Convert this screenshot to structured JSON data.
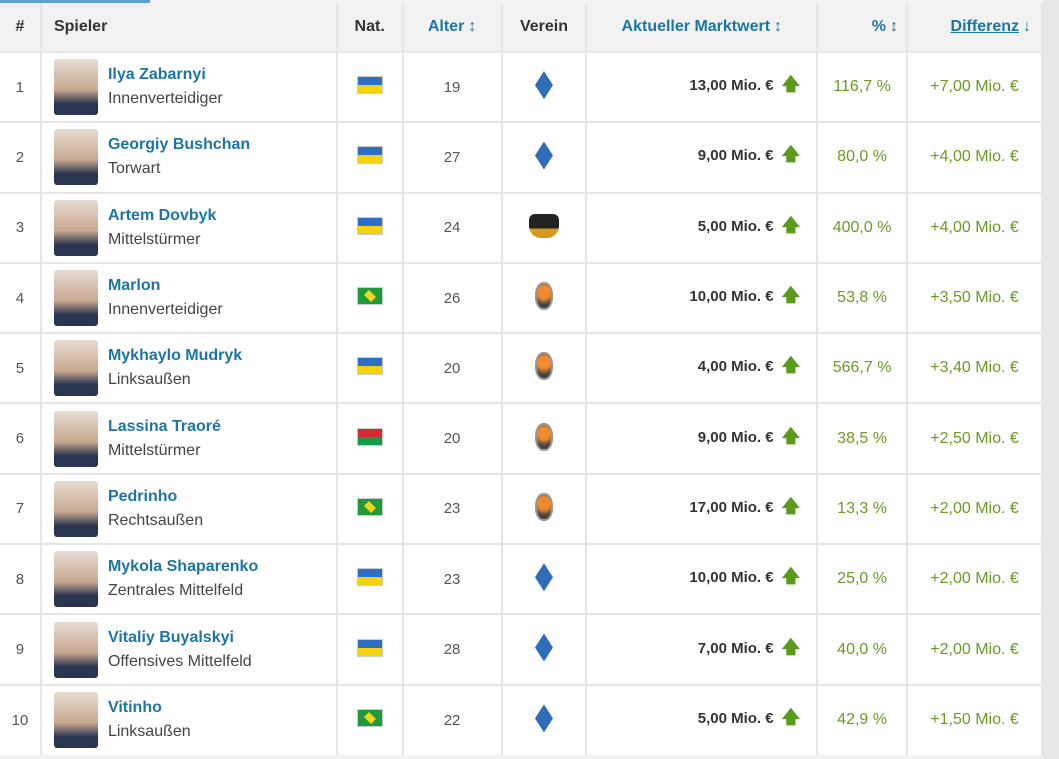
{
  "headers": {
    "rank": "#",
    "player": "Spieler",
    "nat": "Nat.",
    "age": "Alter",
    "age_sort": "↕",
    "club": "Verein",
    "value": "Aktueller Marktwert",
    "value_sort": "↕",
    "pct": "%",
    "pct_sort": "↕",
    "diff": "Differenz",
    "diff_sort": "↓"
  },
  "rows": [
    {
      "rank": "1",
      "name": "Ilya Zabarnyi",
      "pos": "Innenverteidiger",
      "flag": "ua",
      "age": "19",
      "club": "dynamo",
      "value": "13,00 Mio. €",
      "pct": "116,7 %",
      "diff": "+7,00 Mio. €"
    },
    {
      "rank": "2",
      "name": "Georgiy Bushchan",
      "pos": "Torwart",
      "flag": "ua",
      "age": "27",
      "club": "dynamo",
      "value": "9,00 Mio. €",
      "pct": "80,0 %",
      "diff": "+4,00 Mio. €"
    },
    {
      "rank": "3",
      "name": "Artem Dovbyk",
      "pos": "Mittelstürmer",
      "flag": "ua",
      "age": "24",
      "club": "dnipro",
      "value": "5,00 Mio. €",
      "pct": "400,0 %",
      "diff": "+4,00 Mio. €"
    },
    {
      "rank": "4",
      "name": "Marlon",
      "pos": "Innenverteidiger",
      "flag": "br",
      "age": "26",
      "club": "shakhtar",
      "value": "10,00 Mio. €",
      "pct": "53,8 %",
      "diff": "+3,50 Mio. €"
    },
    {
      "rank": "5",
      "name": "Mykhaylo Mudryk",
      "pos": "Linksaußen",
      "flag": "ua",
      "age": "20",
      "club": "shakhtar",
      "value": "4,00 Mio. €",
      "pct": "566,7 %",
      "diff": "+3,40 Mio. €"
    },
    {
      "rank": "6",
      "name": "Lassina Traoré",
      "pos": "Mittelstürmer",
      "flag": "bf",
      "age": "20",
      "club": "shakhtar",
      "value": "9,00 Mio. €",
      "pct": "38,5 %",
      "diff": "+2,50 Mio. €"
    },
    {
      "rank": "7",
      "name": "Pedrinho",
      "pos": "Rechtsaußen",
      "flag": "br",
      "age": "23",
      "club": "shakhtar",
      "value": "17,00 Mio. €",
      "pct": "13,3 %",
      "diff": "+2,00 Mio. €"
    },
    {
      "rank": "8",
      "name": "Mykola Shaparenko",
      "pos": "Zentrales Mittelfeld",
      "flag": "ua",
      "age": "23",
      "club": "dynamo",
      "value": "10,00 Mio. €",
      "pct": "25,0 %",
      "diff": "+2,00 Mio. €"
    },
    {
      "rank": "9",
      "name": "Vitaliy Buyalskyi",
      "pos": "Offensives Mittelfeld",
      "flag": "ua",
      "age": "28",
      "club": "dynamo",
      "value": "7,00 Mio. €",
      "pct": "40,0 %",
      "diff": "+2,00 Mio. €"
    },
    {
      "rank": "10",
      "name": "Vitinho",
      "pos": "Linksaußen",
      "flag": "br",
      "age": "22",
      "club": "dynamo",
      "value": "5,00 Mio. €",
      "pct": "42,9 %",
      "diff": "+1,50 Mio. €"
    }
  ],
  "arrow_up": "🡅"
}
